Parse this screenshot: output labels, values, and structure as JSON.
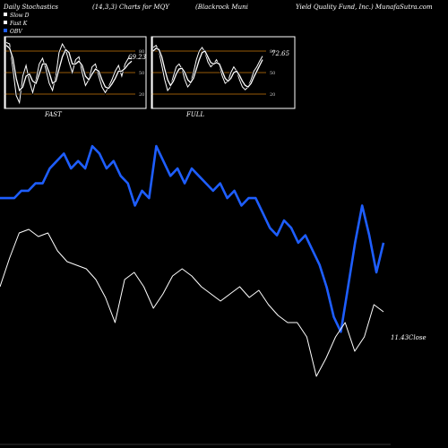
{
  "header": {
    "texts": [
      "Daily Stochastics",
      "(14,3,3) Charts for MQY",
      "(Blackrock Muni",
      "Yield Quality Fund, Inc.) MunafaSutra.com"
    ]
  },
  "legend": {
    "items": [
      {
        "label": "Slow D",
        "color": "#ffffff"
      },
      {
        "label": "Fast K",
        "color": "#ffffff"
      },
      {
        "label": "OBV",
        "color": "#1e5eff"
      }
    ]
  },
  "colors": {
    "obv": "#1e5eff",
    "price": "#ffffff",
    "panel_bg": "#000000",
    "grid_line": "#c8780a",
    "border": "#ffffff"
  },
  "chart_data": [
    {
      "type": "line",
      "panel": "FAST",
      "label": "FAST",
      "last_value_label": "69.23",
      "yticks": [
        80,
        50,
        20
      ],
      "ylim": [
        0,
        100
      ],
      "series": [
        {
          "name": "Fast K",
          "values": [
            92,
            90,
            55,
            18,
            8,
            45,
            60,
            38,
            22,
            40,
            62,
            70,
            55,
            35,
            25,
            45,
            78,
            90,
            82,
            65,
            50,
            68,
            72,
            50,
            32,
            40,
            58,
            62,
            45,
            30,
            22,
            30,
            40,
            52,
            60,
            45,
            62,
            70,
            69
          ]
        },
        {
          "name": "Slow D",
          "values": [
            88,
            84,
            70,
            42,
            25,
            30,
            45,
            48,
            38,
            35,
            48,
            62,
            62,
            50,
            35,
            38,
            55,
            72,
            82,
            78,
            62,
            62,
            66,
            60,
            45,
            40,
            48,
            55,
            52,
            40,
            30,
            28,
            34,
            42,
            52,
            52,
            56,
            62,
            66
          ]
        }
      ]
    },
    {
      "type": "line",
      "panel": "FULL",
      "label": "FULL",
      "last_value_label": "72.65",
      "yticks": [
        80,
        50,
        20
      ],
      "ylim": [
        0,
        100
      ],
      "series": [
        {
          "name": "Fast K",
          "values": [
            85,
            88,
            80,
            60,
            40,
            25,
            30,
            45,
            58,
            62,
            55,
            40,
            30,
            35,
            50,
            68,
            80,
            85,
            78,
            65,
            58,
            62,
            68,
            60,
            45,
            35,
            38,
            50,
            58,
            52,
            40,
            30,
            26,
            30,
            40,
            52,
            58,
            66,
            73
          ]
        },
        {
          "name": "Slow D",
          "values": [
            80,
            84,
            82,
            72,
            55,
            40,
            32,
            38,
            48,
            55,
            56,
            50,
            40,
            36,
            42,
            55,
            68,
            78,
            80,
            72,
            64,
            62,
            64,
            62,
            52,
            42,
            38,
            42,
            50,
            52,
            46,
            38,
            32,
            30,
            35,
            44,
            52,
            60,
            68
          ]
        }
      ]
    },
    {
      "type": "line",
      "panel": "main",
      "price_label": "11.43",
      "price_label_suffix": "Close",
      "series": [
        {
          "name": "OBV",
          "values": [
            54,
            54,
            54,
            55,
            55,
            56,
            56,
            58,
            59,
            60,
            58,
            59,
            58,
            61,
            60,
            58,
            59,
            57,
            56,
            53,
            55,
            54,
            61,
            59,
            57,
            58,
            56,
            58,
            57,
            56,
            55,
            56,
            54,
            55,
            53,
            54,
            54,
            52,
            50,
            49,
            51,
            50,
            48,
            49,
            47,
            45,
            42,
            38,
            36,
            42,
            48,
            53,
            49,
            44,
            48
          ]
        },
        {
          "name": "Price",
          "values": [
            11.5,
            11.58,
            11.65,
            11.66,
            11.64,
            11.65,
            11.6,
            11.57,
            11.56,
            11.55,
            11.52,
            11.47,
            11.4,
            11.52,
            11.54,
            11.5,
            11.44,
            11.48,
            11.53,
            11.55,
            11.53,
            11.5,
            11.48,
            11.46,
            11.48,
            11.5,
            11.47,
            11.49,
            11.45,
            11.42,
            11.4,
            11.4,
            11.36,
            11.25,
            11.3,
            11.36,
            11.4,
            11.32,
            11.36,
            11.45,
            11.43
          ]
        }
      ]
    }
  ]
}
